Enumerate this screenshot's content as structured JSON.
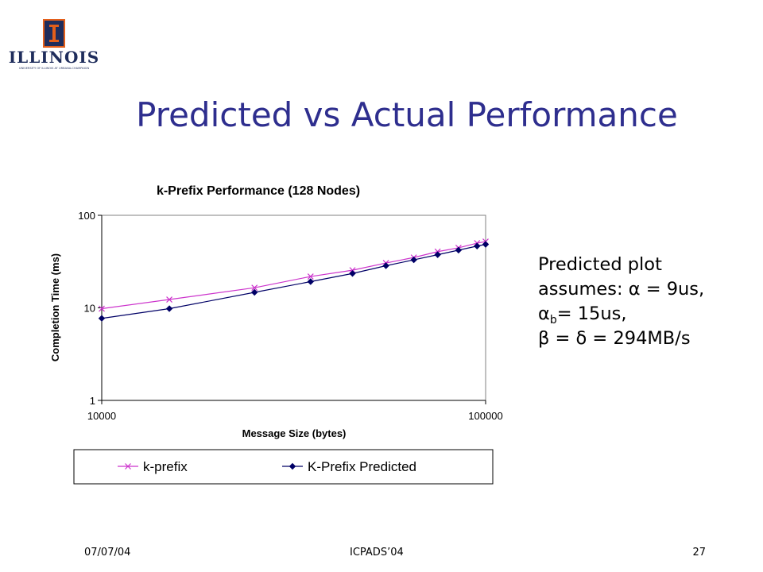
{
  "slide": {
    "title": "Predicted vs Actual Performance",
    "logo_text": "ILLINOIS",
    "logo_subtext": "UNIVERSITY OF ILLINOIS AT URBANA-CHAMPAIGN"
  },
  "note": {
    "line1": "Predicted plot",
    "line2_prefix": "assumes: ",
    "alpha_eq": "α = 9us,",
    "alpha_b": "α",
    "alpha_b_sub": "b",
    "alpha_b_val": "= 15us,",
    "line4": "β = δ = 294MB/s"
  },
  "footer": {
    "date": "07/07/04",
    "conference": "ICPADS’04",
    "page": "27"
  },
  "colors": {
    "title": "#2e2e8e",
    "kprefix": "#cc33cc",
    "predicted": "#000066"
  },
  "chart_data": {
    "type": "line",
    "title": "k-Prefix Performance (128 Nodes)",
    "xlabel": "Message Size (bytes)",
    "ylabel": "Completion Time (ms)",
    "x_scale": "log",
    "y_scale": "log",
    "xlim": [
      10000,
      100000
    ],
    "ylim": [
      1,
      100
    ],
    "x_ticks": [
      "10000",
      "100000"
    ],
    "y_ticks": [
      "1",
      "10",
      "100"
    ],
    "grid": false,
    "legend_position": "bottom",
    "x": [
      10000,
      15000,
      25000,
      35000,
      45000,
      55000,
      65000,
      75000,
      85000,
      95000,
      100000
    ],
    "series": [
      {
        "name": "k-prefix",
        "marker": "x",
        "color": "#cc33cc",
        "values": [
          9.8,
          12.3,
          16.5,
          21.8,
          25.5,
          30.5,
          35,
          40.5,
          44.5,
          50,
          52
        ]
      },
      {
        "name": "K-Prefix Predicted",
        "marker": "diamond",
        "color": "#000066",
        "values": [
          7.7,
          9.8,
          14.7,
          19.2,
          23.5,
          28.5,
          33,
          37.5,
          42,
          46.5,
          48.5
        ]
      }
    ]
  }
}
